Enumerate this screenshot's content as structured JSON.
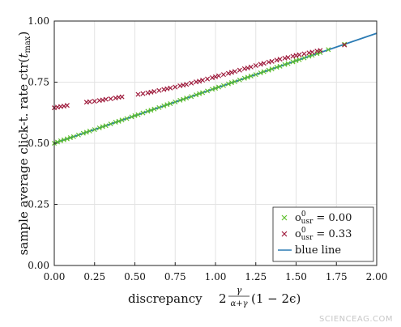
{
  "chart_data": {
    "type": "scatter",
    "title": "",
    "xlabel": "discrepancy",
    "xlabel_math_lead": "2",
    "xlabel_frac_num": "γ",
    "xlabel_frac_den": "α+γ",
    "xlabel_math_tail": "(1 − 2ϵ)",
    "ylabel": "sample average click-t. rate ctr(",
    "ylabel_var": "t",
    "ylabel_sub": "max",
    "ylabel_close": ")",
    "xlim": [
      0,
      2
    ],
    "ylim": [
      0,
      1
    ],
    "xticks": [
      "0.00",
      "0.25",
      "0.50",
      "0.75",
      "1.00",
      "1.25",
      "1.50",
      "1.75",
      "2.00"
    ],
    "yticks": [
      "0.00",
      "0.25",
      "0.50",
      "0.75",
      "1.00"
    ],
    "grid": true,
    "legend_position": "bottom-right",
    "line": {
      "label": "blue line",
      "color": "#2b7bb4",
      "x": [
        0,
        2
      ],
      "y": [
        0.5,
        0.95
      ]
    },
    "series": [
      {
        "name_base": "o",
        "name_sup": "0",
        "name_sub": "usr",
        "name_value": " = 0.00",
        "color": "#5fbf2e",
        "marker": "x",
        "x": [
          0.0,
          0.02,
          0.04,
          0.06,
          0.08,
          0.1,
          0.12,
          0.15,
          0.18,
          0.2,
          0.22,
          0.25,
          0.28,
          0.3,
          0.32,
          0.35,
          0.38,
          0.4,
          0.42,
          0.45,
          0.48,
          0.5,
          0.52,
          0.55,
          0.58,
          0.6,
          0.62,
          0.65,
          0.68,
          0.7,
          0.72,
          0.75,
          0.78,
          0.8,
          0.82,
          0.85,
          0.88,
          0.9,
          0.92,
          0.95,
          0.98,
          1.0,
          1.02,
          1.05,
          1.08,
          1.1,
          1.12,
          1.15,
          1.18,
          1.2,
          1.22,
          1.25,
          1.28,
          1.3,
          1.33,
          1.35,
          1.38,
          1.4,
          1.43,
          1.45,
          1.48,
          1.5,
          1.52,
          1.55,
          1.58,
          1.6,
          1.63,
          1.65,
          1.7,
          1.8
        ],
        "y": [
          0.5,
          0.505,
          0.51,
          0.514,
          0.518,
          0.523,
          0.527,
          0.534,
          0.541,
          0.545,
          0.55,
          0.556,
          0.563,
          0.568,
          0.572,
          0.579,
          0.586,
          0.59,
          0.595,
          0.601,
          0.608,
          0.613,
          0.617,
          0.624,
          0.631,
          0.635,
          0.64,
          0.646,
          0.653,
          0.658,
          0.662,
          0.669,
          0.676,
          0.68,
          0.685,
          0.691,
          0.698,
          0.703,
          0.707,
          0.714,
          0.721,
          0.725,
          0.73,
          0.736,
          0.743,
          0.748,
          0.752,
          0.759,
          0.766,
          0.77,
          0.775,
          0.781,
          0.788,
          0.793,
          0.799,
          0.804,
          0.811,
          0.815,
          0.822,
          0.826,
          0.833,
          0.838,
          0.842,
          0.849,
          0.856,
          0.86,
          0.867,
          0.871,
          0.883,
          0.905
        ]
      },
      {
        "name_base": "o",
        "name_sup": "0",
        "name_sub": "usr",
        "name_value": " = 0.33",
        "color": "#9e1b3c",
        "marker": "x",
        "x": [
          0.0,
          0.02,
          0.04,
          0.06,
          0.08,
          0.2,
          0.22,
          0.25,
          0.28,
          0.3,
          0.32,
          0.35,
          0.38,
          0.4,
          0.42,
          0.52,
          0.55,
          0.58,
          0.6,
          0.62,
          0.65,
          0.68,
          0.7,
          0.72,
          0.75,
          0.78,
          0.8,
          0.82,
          0.85,
          0.88,
          0.9,
          0.92,
          0.95,
          0.98,
          1.0,
          1.02,
          1.05,
          1.08,
          1.1,
          1.12,
          1.15,
          1.18,
          1.2,
          1.22,
          1.25,
          1.28,
          1.3,
          1.33,
          1.35,
          1.38,
          1.4,
          1.43,
          1.45,
          1.48,
          1.5,
          1.52,
          1.55,
          1.58,
          1.6,
          1.63,
          1.65,
          1.8
        ],
        "y": [
          0.645,
          0.648,
          0.65,
          0.652,
          0.655,
          0.668,
          0.67,
          0.672,
          0.675,
          0.677,
          0.68,
          0.682,
          0.685,
          0.688,
          0.69,
          0.7,
          0.703,
          0.706,
          0.709,
          0.712,
          0.716,
          0.72,
          0.723,
          0.726,
          0.73,
          0.735,
          0.738,
          0.741,
          0.746,
          0.751,
          0.754,
          0.758,
          0.763,
          0.768,
          0.772,
          0.776,
          0.781,
          0.786,
          0.79,
          0.794,
          0.799,
          0.805,
          0.808,
          0.812,
          0.818,
          0.823,
          0.827,
          0.832,
          0.835,
          0.84,
          0.844,
          0.848,
          0.851,
          0.856,
          0.859,
          0.862,
          0.866,
          0.87,
          0.873,
          0.877,
          0.88,
          0.902
        ]
      }
    ]
  },
  "watermark": "SCIENCEAG.COM"
}
